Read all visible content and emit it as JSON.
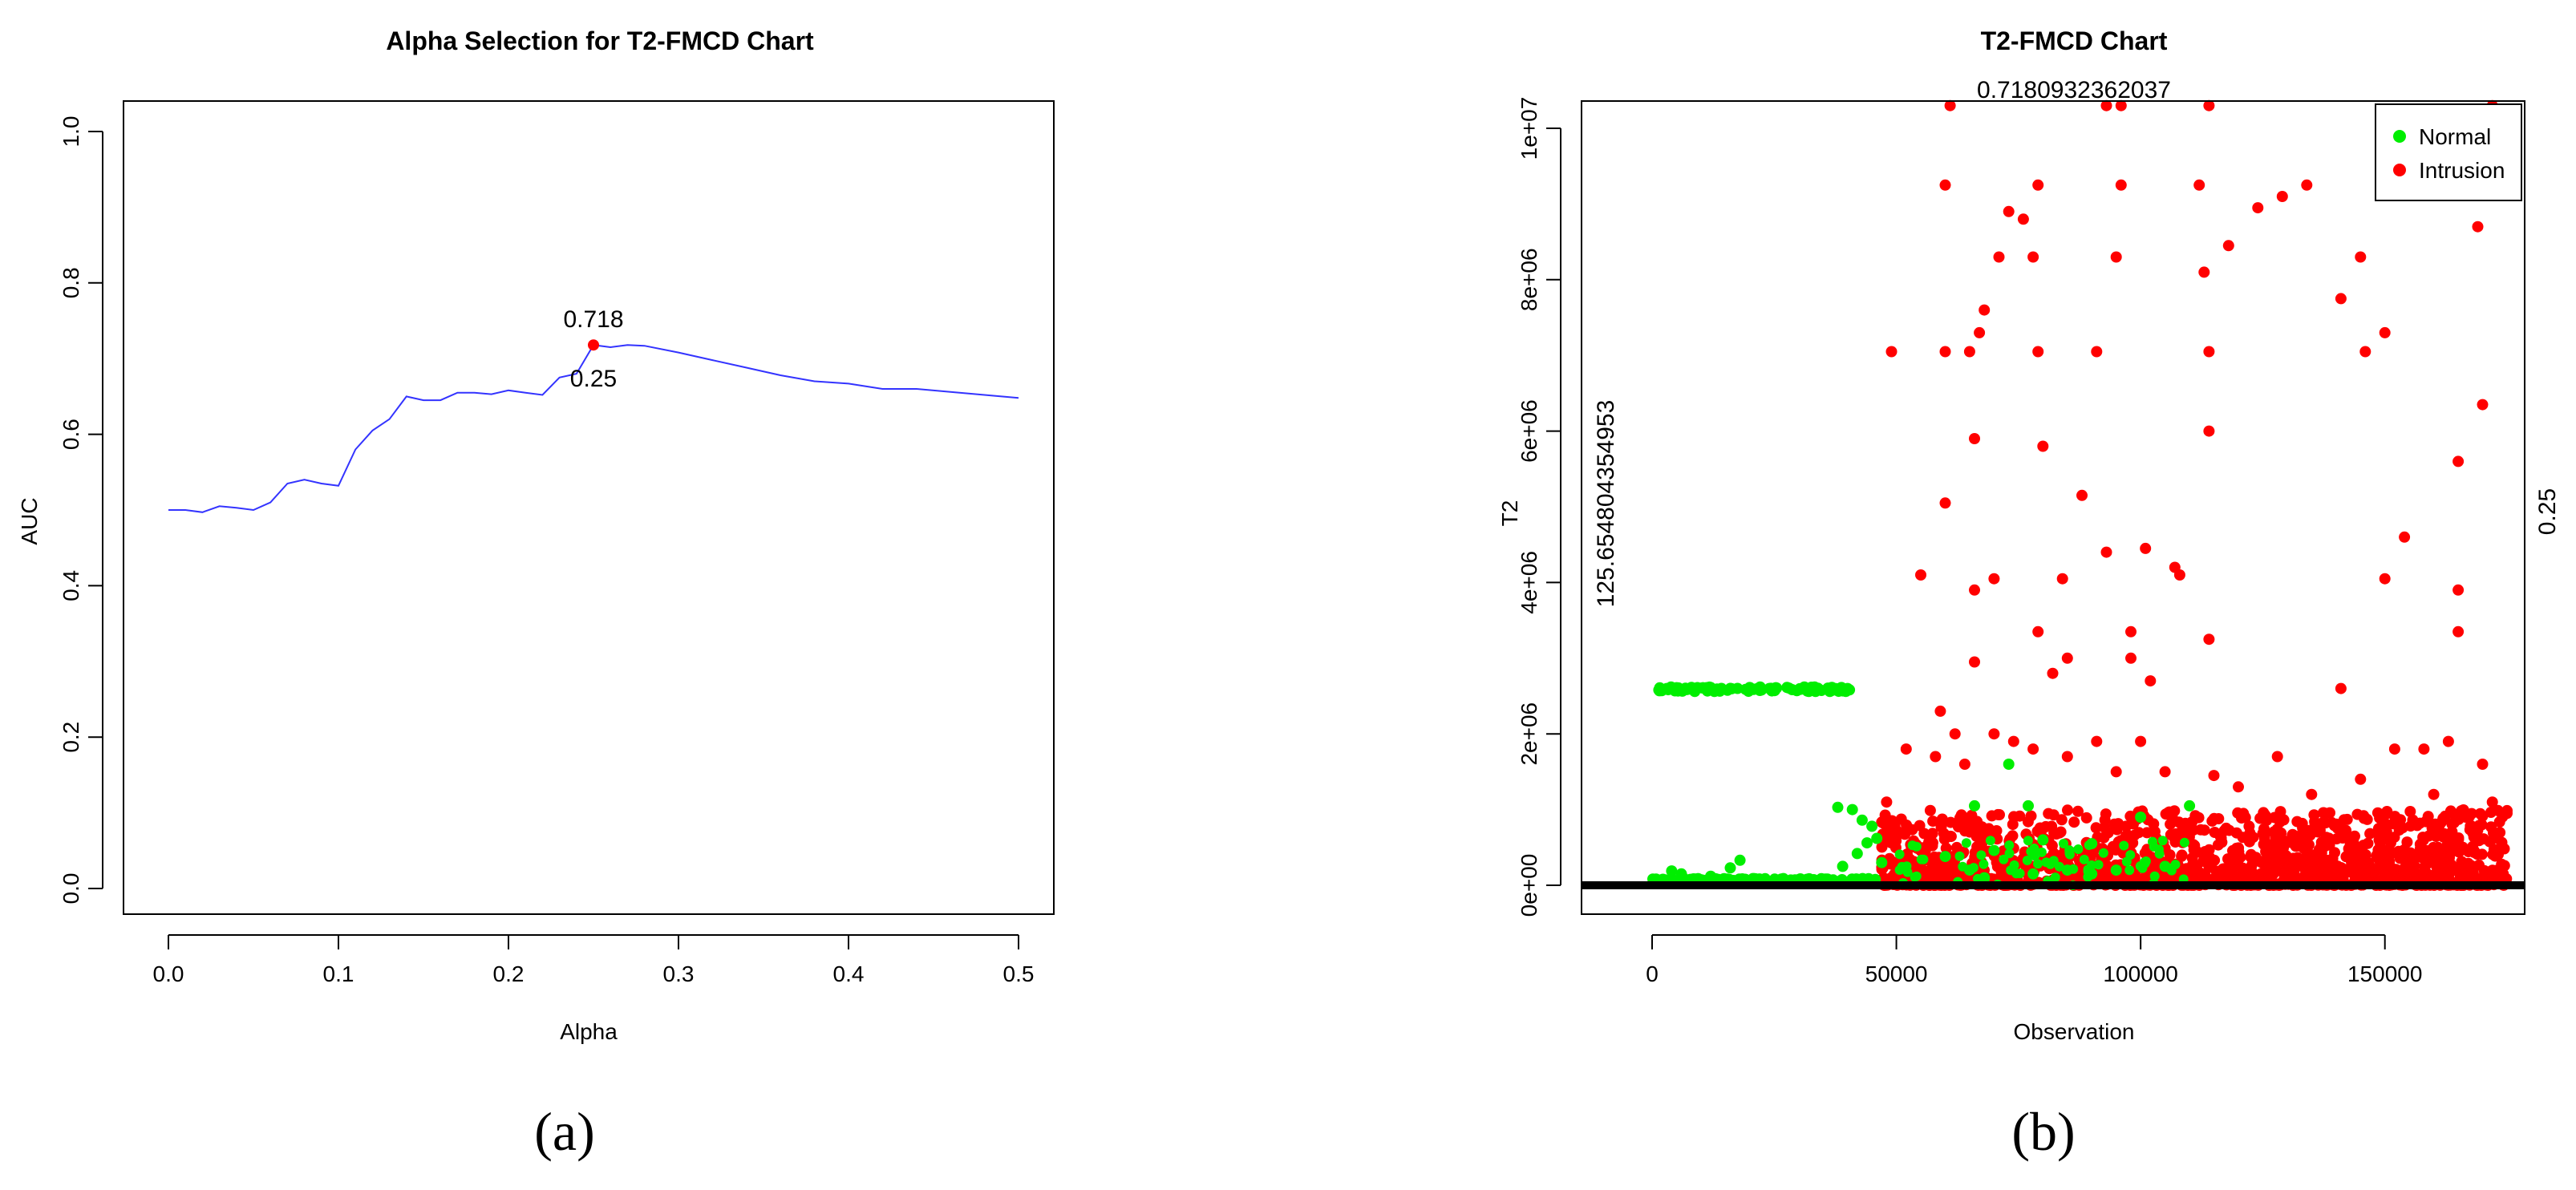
{
  "chart_data": [
    {
      "type": "line",
      "title": "Alpha Selection for T2-FMCD Chart",
      "xlabel": "Alpha",
      "ylabel": "AUC",
      "xlim": [
        0,
        0.5
      ],
      "ylim": [
        0,
        1
      ],
      "x_ticks": [
        "0.0",
        "0.1",
        "0.2",
        "0.3",
        "0.4",
        "0.5"
      ],
      "y_ticks": [
        "0.0",
        "0.2",
        "0.4",
        "0.6",
        "0.8",
        "1.0"
      ],
      "grid": false,
      "line_color": "#3333ff",
      "marker_color": "#ff0000",
      "x": [
        0.0,
        0.01,
        0.02,
        0.03,
        0.04,
        0.05,
        0.06,
        0.07,
        0.08,
        0.09,
        0.1,
        0.11,
        0.12,
        0.13,
        0.14,
        0.15,
        0.16,
        0.17,
        0.18,
        0.19,
        0.2,
        0.21,
        0.22,
        0.23,
        0.24,
        0.25,
        0.26,
        0.27,
        0.28,
        0.3,
        0.32,
        0.34,
        0.36,
        0.38,
        0.4,
        0.42,
        0.44,
        0.46,
        0.48,
        0.5
      ],
      "y": [
        0.5,
        0.5,
        0.497,
        0.505,
        0.503,
        0.5,
        0.51,
        0.535,
        0.54,
        0.535,
        0.532,
        0.58,
        0.605,
        0.62,
        0.65,
        0.645,
        0.645,
        0.655,
        0.655,
        0.653,
        0.658,
        0.655,
        0.652,
        0.675,
        0.68,
        0.718,
        0.715,
        0.718,
        0.717,
        0.708,
        0.698,
        0.688,
        0.678,
        0.67,
        0.667,
        0.66,
        0.66,
        0.656,
        0.652,
        0.648
      ],
      "highlight": {
        "x": 0.25,
        "y": 0.718,
        "value_label": "0.718",
        "alpha_label": "0.25"
      },
      "caption": "(a)"
    },
    {
      "type": "scatter",
      "title": "T2-FMCD Chart",
      "subtitle": "0.7180932362037",
      "xlabel": "Observation",
      "ylabel": "T2",
      "xlim": [
        0,
        175000
      ],
      "ylim": [
        0,
        10000000
      ],
      "x_ticks": [
        "0",
        "50000",
        "100000",
        "150000"
      ],
      "y_ticks": [
        "0e+00",
        "2e+06",
        "4e+06",
        "6e+06",
        "8e+06",
        "1e+07"
      ],
      "ucl_label": "125.654804354953",
      "right_label": "0.25",
      "legend": {
        "position": "top-right",
        "entries": [
          "Normal",
          "Intrusion"
        ]
      },
      "colors": {
        "normal": "#00ee00",
        "intrusion": "#ff0000",
        "baseline": "#000000"
      },
      "caption": "(b)",
      "normal_points": [
        [
          1500,
          2570000
        ],
        [
          3000,
          2600000
        ],
        [
          5000,
          2610000
        ],
        [
          8000,
          2600000
        ],
        [
          12000,
          2610000
        ],
        [
          16000,
          2600000
        ],
        [
          20000,
          2605000
        ],
        [
          24000,
          2600000
        ],
        [
          28000,
          2605000
        ],
        [
          32000,
          2600000
        ],
        [
          36000,
          2605000
        ],
        [
          40000,
          2600000
        ],
        [
          1000,
          60000
        ],
        [
          4000,
          190000
        ],
        [
          6000,
          150000
        ],
        [
          12000,
          120000
        ],
        [
          16000,
          230000
        ],
        [
          18000,
          330000
        ],
        [
          38000,
          1030000
        ],
        [
          41000,
          1000000
        ],
        [
          43000,
          860000
        ],
        [
          45000,
          780000
        ],
        [
          46000,
          620000
        ],
        [
          44000,
          560000
        ],
        [
          42000,
          420000
        ],
        [
          47000,
          300000
        ],
        [
          39000,
          250000
        ],
        [
          60000,
          380000
        ],
        [
          65000,
          200000
        ],
        [
          70000,
          460000
        ],
        [
          73000,
          1600000
        ],
        [
          66000,
          1050000
        ],
        [
          77000,
          1050000
        ],
        [
          80000,
          600000
        ],
        [
          85000,
          200000
        ],
        [
          90000,
          550000
        ],
        [
          95000,
          200000
        ],
        [
          100000,
          900000
        ],
        [
          105000,
          250000
        ],
        [
          110000,
          1050000
        ],
        [
          68000,
          100000
        ],
        [
          78000,
          150000
        ],
        [
          90000,
          150000
        ]
      ],
      "intrusion_points": [
        [
          49000,
          7050000
        ],
        [
          61000,
          10300000
        ],
        [
          93000,
          10300000
        ],
        [
          96000,
          10300000
        ],
        [
          114000,
          10300000
        ],
        [
          172000,
          10300000
        ],
        [
          60000,
          9250000
        ],
        [
          79000,
          9250000
        ],
        [
          96000,
          9250000
        ],
        [
          112000,
          9250000
        ],
        [
          134000,
          9250000
        ],
        [
          129000,
          9100000
        ],
        [
          73000,
          8900000
        ],
        [
          76000,
          8800000
        ],
        [
          124000,
          8950000
        ],
        [
          118000,
          8450000
        ],
        [
          113000,
          8100000
        ],
        [
          71000,
          8300000
        ],
        [
          78000,
          8300000
        ],
        [
          95000,
          8300000
        ],
        [
          145000,
          8300000
        ],
        [
          169000,
          8700000
        ],
        [
          68000,
          7600000
        ],
        [
          67000,
          7300000
        ],
        [
          141000,
          7750000
        ],
        [
          150000,
          7300000
        ],
        [
          60000,
          7050000
        ],
        [
          65000,
          7050000
        ],
        [
          79000,
          7050000
        ],
        [
          91000,
          7050000
        ],
        [
          114000,
          7050000
        ],
        [
          146000,
          7050000
        ],
        [
          114000,
          6000000
        ],
        [
          66000,
          5900000
        ],
        [
          80000,
          5800000
        ],
        [
          170000,
          6350000
        ],
        [
          165000,
          5600000
        ],
        [
          60000,
          5050000
        ],
        [
          88000,
          5150000
        ],
        [
          154000,
          4600000
        ],
        [
          93000,
          4400000
        ],
        [
          101000,
          4450000
        ],
        [
          107000,
          4200000
        ],
        [
          108000,
          4100000
        ],
        [
          55000,
          4100000
        ],
        [
          66000,
          3900000
        ],
        [
          70000,
          4050000
        ],
        [
          84000,
          4050000
        ],
        [
          150000,
          4050000
        ],
        [
          165000,
          3900000
        ],
        [
          79000,
          3350000
        ],
        [
          98000,
          3350000
        ],
        [
          165000,
          3350000
        ],
        [
          114000,
          3250000
        ],
        [
          85000,
          3000000
        ],
        [
          98000,
          3000000
        ],
        [
          66000,
          2950000
        ],
        [
          82000,
          2800000
        ],
        [
          102000,
          2700000
        ],
        [
          141000,
          2600000
        ],
        [
          59000,
          2300000
        ],
        [
          62000,
          2000000
        ],
        [
          70000,
          2000000
        ],
        [
          74000,
          1900000
        ],
        [
          78000,
          1800000
        ],
        [
          91000,
          1900000
        ],
        [
          100000,
          1900000
        ],
        [
          128000,
          1700000
        ],
        [
          152000,
          1800000
        ],
        [
          158000,
          1800000
        ],
        [
          163000,
          1900000
        ],
        [
          170000,
          1600000
        ],
        [
          52000,
          1800000
        ],
        [
          58000,
          1700000
        ],
        [
          64000,
          1600000
        ],
        [
          85000,
          1700000
        ],
        [
          95000,
          1500000
        ],
        [
          105000,
          1500000
        ],
        [
          115000,
          1450000
        ],
        [
          120000,
          1300000
        ],
        [
          135000,
          1200000
        ],
        [
          145000,
          1400000
        ],
        [
          48000,
          1100000
        ],
        [
          160000,
          1200000
        ],
        [
          172000,
          1100000
        ],
        [
          175000,
          950000
        ]
      ],
      "intrusion_band": {
        "x_start": 47000,
        "x_end": 175000,
        "y_min": 0,
        "y_max": 1000000
      }
    }
  ]
}
